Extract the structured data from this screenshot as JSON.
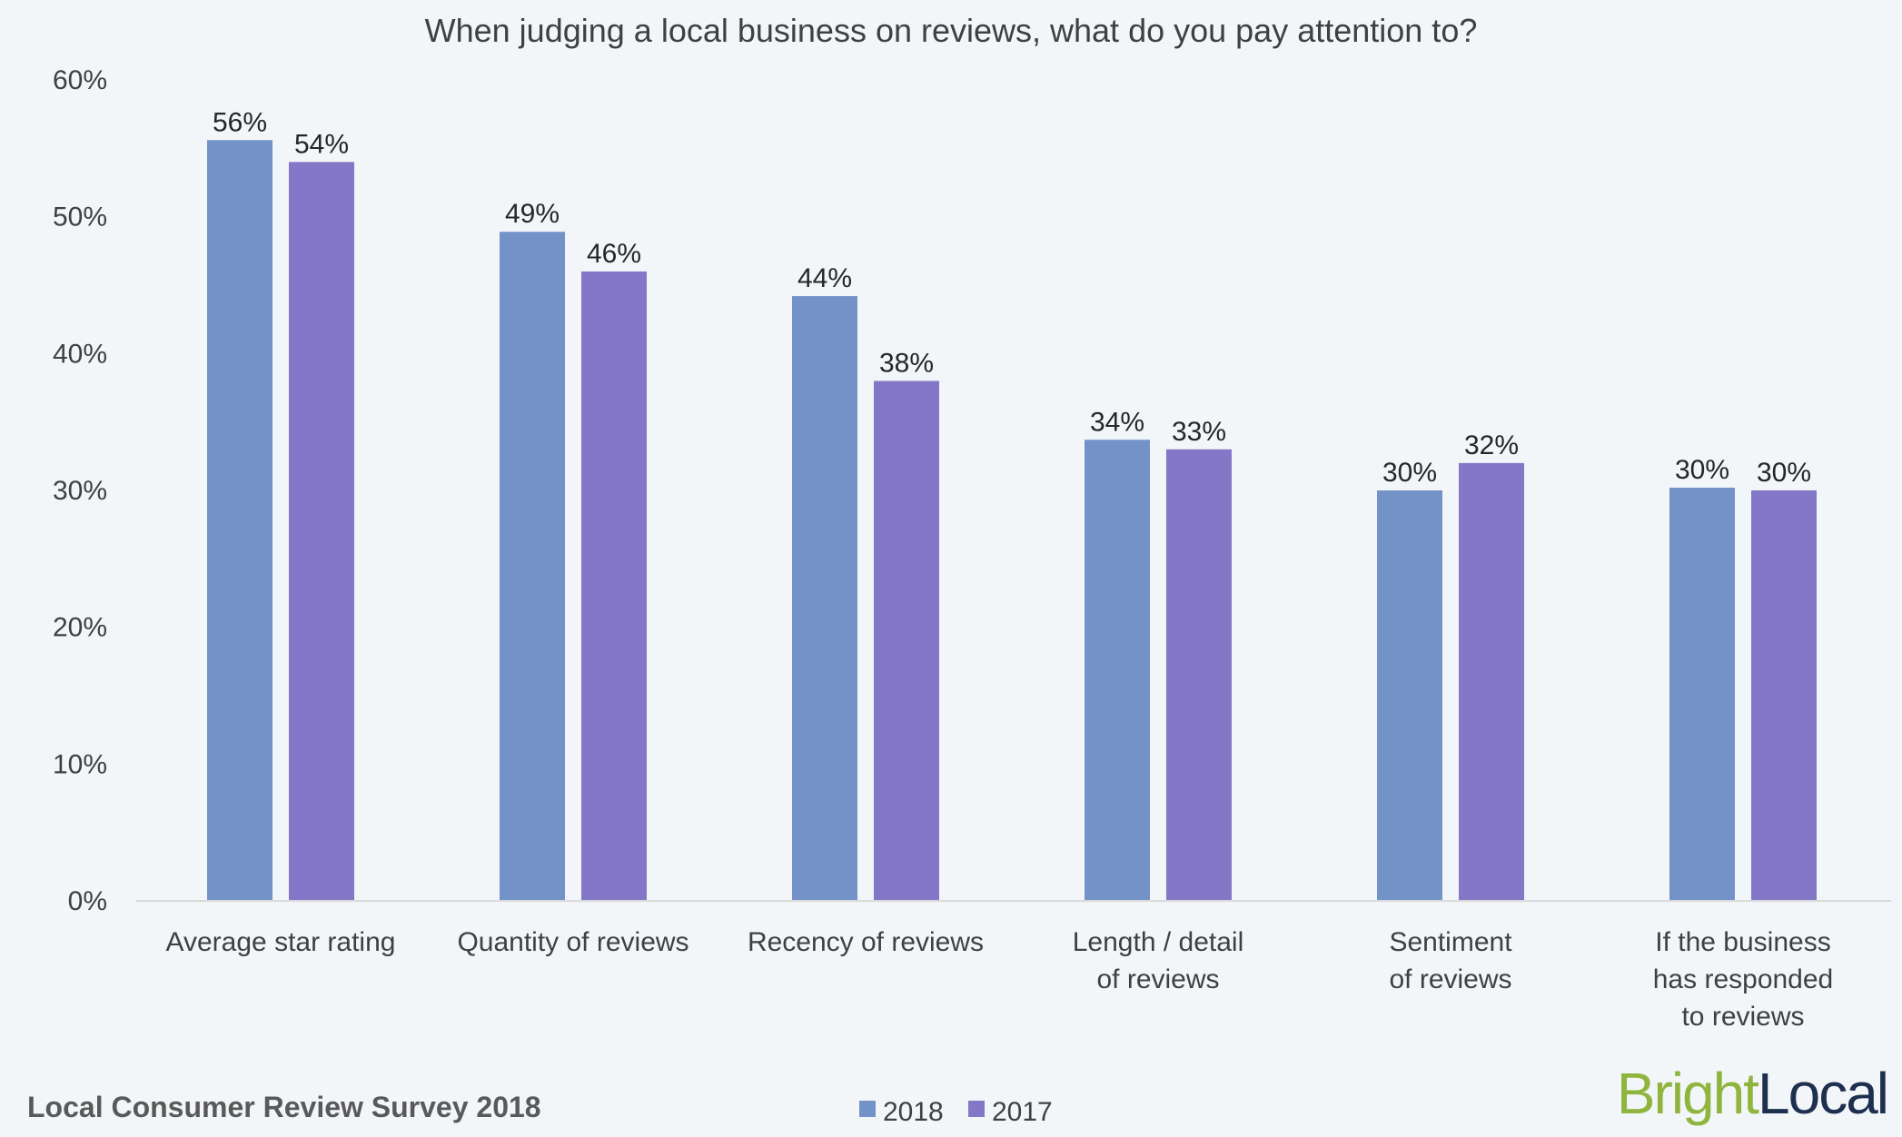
{
  "colors": {
    "series_2018": "#7393c8",
    "series_2017": "#8477c7",
    "background": "#f3f6f9",
    "axis": "#d9d9d9",
    "brand_bright": "#8fb53e",
    "brand_local": "#1f2f4f"
  },
  "footer": {
    "source": "Local Consumer Review Survey 2018",
    "brand_part1": "Bright",
    "brand_part2": "Local"
  },
  "chart_data": {
    "type": "bar",
    "title": "When judging a local business on reviews, what do you pay attention to?",
    "xlabel": "",
    "ylabel": "",
    "ylim": [
      0,
      60
    ],
    "yticks": [
      0,
      10,
      20,
      30,
      40,
      50,
      60
    ],
    "ytick_labels": [
      "0%",
      "10%",
      "20%",
      "30%",
      "40%",
      "50%",
      "60%"
    ],
    "grid": false,
    "legend_position": "bottom",
    "categories": [
      [
        "Average star rating"
      ],
      [
        "Quantity of reviews"
      ],
      [
        "Recency of reviews"
      ],
      [
        "Length / detail",
        "of reviews"
      ],
      [
        "Sentiment",
        "of reviews"
      ],
      [
        "If the business",
        "has responded",
        "to reviews"
      ]
    ],
    "series": [
      {
        "name": "2018",
        "values": [
          55.6,
          48.9,
          44.2,
          33.7,
          30.0,
          30.2
        ],
        "labels": [
          "56%",
          "49%",
          "44%",
          "34%",
          "30%",
          "30%"
        ]
      },
      {
        "name": "2017",
        "values": [
          54.0,
          46.0,
          38.0,
          33.0,
          32.0,
          30.0
        ],
        "labels": [
          "54%",
          "46%",
          "38%",
          "33%",
          "32%",
          "30%"
        ]
      }
    ]
  }
}
